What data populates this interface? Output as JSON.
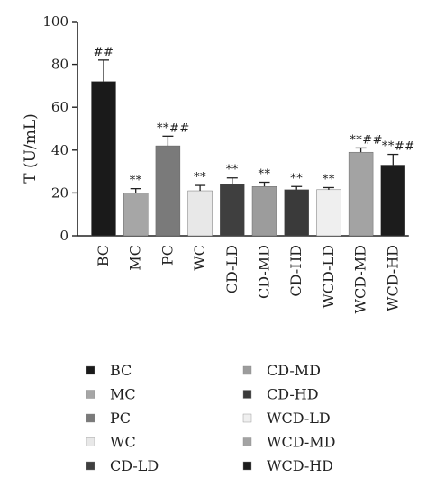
{
  "chart_data": {
    "type": "bar",
    "title": "",
    "xlabel": "",
    "ylabel": "T (U/mL)",
    "ylim": [
      0,
      100
    ],
    "yticks": [
      0,
      20,
      40,
      60,
      80,
      100
    ],
    "grid": false,
    "legend_placement": "bottom",
    "categories": [
      "BC",
      "MC",
      "PC",
      "WC",
      "CD-LD",
      "CD-MD",
      "CD-HD",
      "WCD-LD",
      "WCD-MD",
      "WCD-HD"
    ],
    "values": [
      72,
      20,
      42,
      21,
      24,
      23,
      21.5,
      21.5,
      39,
      33
    ],
    "errors": [
      10,
      2,
      4.5,
      2.5,
      3,
      2,
      1.5,
      1,
      2,
      5
    ],
    "significance": [
      "##",
      "**",
      "**##",
      "**",
      "**",
      "**",
      "**",
      "**",
      "**##",
      "**##"
    ],
    "colors": [
      "#1a1a1a",
      "#a6a6a6",
      "#7a7a7a",
      "#e8e8e8",
      "#3f3f3f",
      "#9c9c9c",
      "#3a3a3a",
      "#efefef",
      "#a3a3a3",
      "#1c1c1c"
    ]
  }
}
